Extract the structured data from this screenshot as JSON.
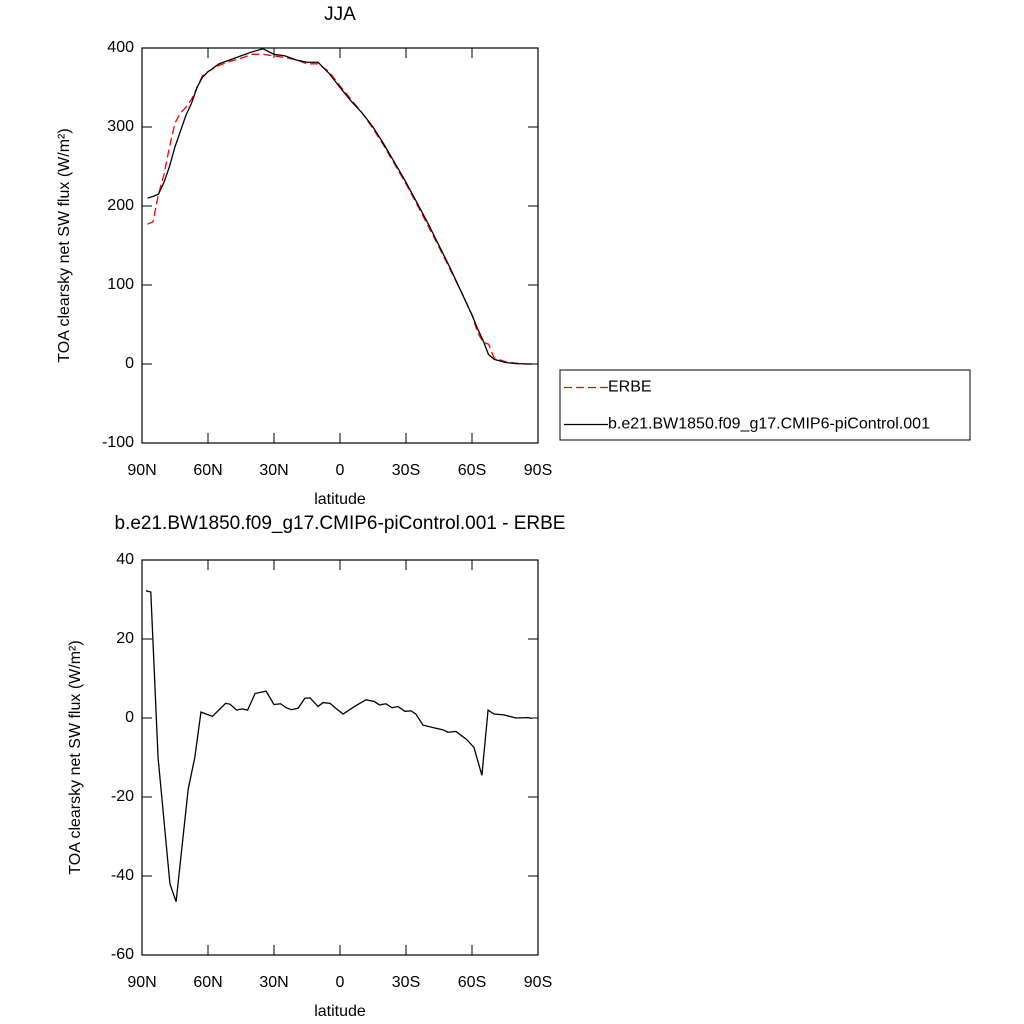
{
  "chart_data": [
    {
      "type": "line",
      "title": "JJA",
      "xlabel": "latitude",
      "ylabel": "TOA clearsky net SW flux (W/m²)",
      "xlim": [
        90,
        -90
      ],
      "xticks": [
        {
          "value": 90,
          "label": "90N"
        },
        {
          "value": 60,
          "label": "60N"
        },
        {
          "value": 30,
          "label": "30N"
        },
        0,
        {
          "value": -30,
          "label": "30S"
        },
        {
          "value": -60,
          "label": "60S"
        },
        {
          "value": -90,
          "label": "90S"
        }
      ],
      "ylim": [
        -100,
        400
      ],
      "yticks": [
        -100,
        0,
        100,
        200,
        300,
        400
      ],
      "legend": "outside right",
      "x": [
        87.5,
        85,
        82.5,
        80,
        77.5,
        75,
        72.5,
        70,
        67.5,
        65,
        62.5,
        60,
        55,
        50,
        45,
        40,
        35,
        30,
        25,
        20,
        15,
        10,
        5,
        0,
        -5,
        -10,
        -15,
        -20,
        -25,
        -30,
        -35,
        -40,
        -45,
        -50,
        -55,
        -60,
        -62.5,
        -65,
        -67.5,
        -70,
        -75,
        -80,
        -85,
        -87.5
      ],
      "series": [
        {
          "name": "ERBE",
          "color": "#ff0000",
          "dash": "dashed",
          "values": [
            177,
            180,
            215,
            240,
            275,
            305,
            318,
            325,
            335,
            350,
            365,
            370,
            378,
            383,
            387,
            392,
            392,
            390,
            388,
            385,
            380,
            380,
            370,
            352,
            335,
            318,
            298,
            276,
            252,
            228,
            202,
            175,
            148,
            120,
            92,
            62,
            40,
            28,
            25,
            8,
            3,
            1,
            0,
            0
          ]
        },
        {
          "name": "b.e21.BW1850.f09_g17.CMIP6-piControl.001",
          "color": "#000000",
          "dash": "solid",
          "values": [
            210,
            212,
            215,
            230,
            250,
            275,
            295,
            315,
            330,
            350,
            363,
            370,
            380,
            385,
            390,
            395,
            399,
            392,
            390,
            385,
            382,
            382,
            368,
            350,
            333,
            318,
            300,
            278,
            254,
            230,
            204,
            178,
            150,
            122,
            92,
            62,
            45,
            30,
            12,
            6,
            2,
            0.5,
            0,
            0
          ]
        }
      ]
    },
    {
      "type": "line",
      "title": "b.e21.BW1850.f09_g17.CMIP6-piControl.001 - ERBE",
      "xlabel": "latitude",
      "ylabel": "TOA clearsky net SW flux (W/m²)",
      "xlim": [
        90,
        -90
      ],
      "xticks": [
        {
          "value": 90,
          "label": "90N"
        },
        {
          "value": 60,
          "label": "60N"
        },
        {
          "value": 30,
          "label": "30N"
        },
        0,
        {
          "value": -30,
          "label": "30S"
        },
        {
          "value": -60,
          "label": "60S"
        },
        {
          "value": -90,
          "label": "90S"
        }
      ],
      "ylim": [
        -60,
        40
      ],
      "yticks": [
        -60,
        -40,
        -20,
        0,
        20,
        40
      ],
      "x": [
        88.2,
        86,
        82.7,
        77.3,
        74.5,
        69,
        66,
        63.2,
        58,
        52,
        50,
        47,
        44.5,
        42,
        38.6,
        33.6,
        30,
        27,
        24.5,
        22,
        19,
        16,
        13.6,
        10,
        7.7,
        4.5,
        2,
        -1.4,
        -6.8,
        -11.8,
        -15.5,
        -18,
        -20.9,
        -23.6,
        -26.4,
        -29.5,
        -32.3,
        -34.5,
        -37.7,
        -43.6,
        -46.8,
        -49,
        -52.7,
        -57.7,
        -60.9,
        -64.5,
        -67.3,
        -70,
        -74.5,
        -80,
        -85.5,
        -87.3
      ],
      "series": [
        {
          "color": "#000000",
          "dash": "solid",
          "values": [
            32.2,
            31.9,
            -10,
            -42,
            -46.5,
            -18,
            -10,
            1.5,
            0.4,
            3.7,
            3.5,
            2.0,
            2.3,
            2.0,
            6.2,
            6.8,
            3.4,
            3.6,
            2.6,
            2.1,
            2.5,
            5.0,
            5.1,
            2.9,
            3.9,
            3.7,
            2.5,
            1.0,
            3.0,
            4.6,
            4.2,
            3.3,
            3.6,
            2.6,
            2.9,
            1.7,
            1.8,
            1.0,
            -1.8,
            -2.6,
            -3.0,
            -3.6,
            -3.4,
            -5.5,
            -7.5,
            -14.5,
            2.0,
            1.0,
            0.8,
            0.0,
            0.1,
            -0.1
          ]
        }
      ]
    }
  ]
}
